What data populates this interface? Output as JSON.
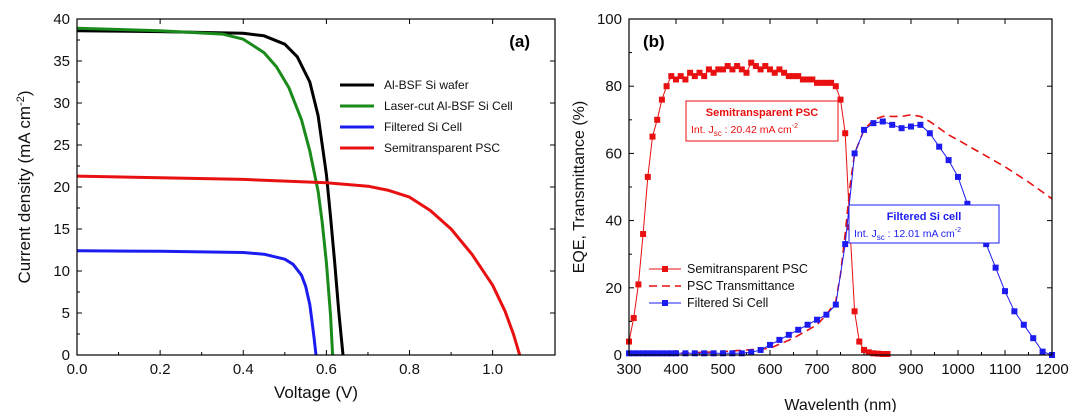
{
  "chart_data": [
    {
      "type": "line",
      "panel_label": "(a)",
      "xlabel": "Voltage (V)",
      "ylabel_main": "Current density (mA cm",
      "ylabel_sup": "-2",
      "ylabel_end": ")",
      "xlim": [
        0.0,
        1.15
      ],
      "ylim": [
        0,
        40
      ],
      "xticks": [
        "0.0",
        "0.2",
        "0.4",
        "0.6",
        "0.8",
        "1.0"
      ],
      "xtick_values": [
        0.0,
        0.2,
        0.4,
        0.6,
        0.8,
        1.0
      ],
      "yticks": [
        "0",
        "5",
        "10",
        "15",
        "20",
        "25",
        "30",
        "35",
        "40"
      ],
      "ytick_values": [
        0,
        5,
        10,
        15,
        20,
        25,
        30,
        35,
        40
      ],
      "legend_position": "right",
      "series": [
        {
          "name": "Al-BSF Si wafer",
          "color": "#000000",
          "x": [
            0.0,
            0.2,
            0.4,
            0.45,
            0.5,
            0.53,
            0.56,
            0.58,
            0.6,
            0.61,
            0.62,
            0.63,
            0.64
          ],
          "y": [
            38.6,
            38.5,
            38.3,
            38.0,
            37.0,
            35.5,
            32.5,
            28.5,
            21.5,
            16.5,
            11.0,
            5.0,
            0.0
          ]
        },
        {
          "name": "Laser-cut Al-BSF Si Cell",
          "color": "#1a8a1a",
          "x": [
            0.0,
            0.2,
            0.35,
            0.4,
            0.45,
            0.48,
            0.51,
            0.54,
            0.56,
            0.58,
            0.59,
            0.6,
            0.61,
            0.615
          ],
          "y": [
            38.9,
            38.6,
            38.2,
            37.6,
            36.0,
            34.3,
            31.8,
            28.0,
            24.3,
            19.5,
            15.8,
            11.0,
            4.8,
            0.0
          ]
        },
        {
          "name": "Filtered Si Cell",
          "color": "#1c1cf0",
          "x": [
            0.0,
            0.2,
            0.4,
            0.45,
            0.5,
            0.52,
            0.54,
            0.55,
            0.56,
            0.565,
            0.57,
            0.575
          ],
          "y": [
            12.4,
            12.35,
            12.2,
            12.0,
            11.4,
            10.8,
            9.5,
            8.2,
            6.0,
            4.2,
            2.2,
            0.0
          ]
        },
        {
          "name": "Semitransparent PSC",
          "color": "#e81010",
          "x": [
            0.0,
            0.2,
            0.4,
            0.6,
            0.7,
            0.75,
            0.8,
            0.85,
            0.9,
            0.95,
            1.0,
            1.03,
            1.05,
            1.065
          ],
          "y": [
            21.3,
            21.1,
            20.9,
            20.5,
            20.1,
            19.6,
            18.8,
            17.2,
            15.0,
            12.0,
            8.3,
            5.2,
            2.5,
            0.0
          ]
        }
      ]
    },
    {
      "type": "scatter",
      "panel_label": "(b)",
      "xlabel": "Wavelenth (nm)",
      "ylabel": "EQE, Transmittance (%)",
      "xlim": [
        300,
        1200
      ],
      "ylim": [
        0,
        100
      ],
      "xticks": [
        "300",
        "400",
        "500",
        "600",
        "700",
        "800",
        "900",
        "1000",
        "1100",
        "1200"
      ],
      "xtick_values": [
        300,
        400,
        500,
        600,
        700,
        800,
        900,
        1000,
        1100,
        1200
      ],
      "yticks": [
        "0",
        "20",
        "40",
        "60",
        "80",
        "100"
      ],
      "ytick_values": [
        0,
        20,
        40,
        60,
        80,
        100
      ],
      "legend_position": "bottom-left",
      "annotations": [
        {
          "title": "Semitransparent PSC",
          "prefix": "Int. J",
          "sub": "sc",
          "value": " : 20.42 mA cm",
          "sup": "-2",
          "color": "#e81010"
        },
        {
          "title": "Filtered Si cell",
          "prefix": "Int. J",
          "sub": "sc",
          "value": " : 12.01 mA cm",
          "sup": "-2",
          "color": "#1c1cf0"
        }
      ],
      "series": [
        {
          "name": "Semitransparent PSC",
          "color": "#e81010",
          "style": "line-square",
          "x": [
            300,
            310,
            320,
            330,
            340,
            350,
            360,
            370,
            380,
            390,
            400,
            410,
            420,
            430,
            440,
            450,
            460,
            470,
            480,
            490,
            500,
            510,
            520,
            530,
            540,
            550,
            560,
            570,
            580,
            590,
            600,
            610,
            620,
            630,
            640,
            650,
            660,
            670,
            680,
            690,
            700,
            710,
            720,
            730,
            740,
            750,
            760,
            770,
            780,
            790,
            800,
            810,
            820,
            830,
            840,
            850
          ],
          "y": [
            4,
            11,
            21,
            36,
            53,
            65,
            70,
            76,
            80,
            83,
            82,
            83,
            82,
            84,
            83,
            84,
            83,
            85,
            84,
            85,
            85,
            86,
            85,
            86,
            85,
            84,
            87,
            86,
            85,
            86,
            85,
            84,
            85,
            84,
            83,
            83,
            83,
            82,
            82,
            82,
            81,
            81,
            81,
            81,
            80,
            76,
            66,
            38,
            13,
            4,
            1.5,
            0.8,
            0.5,
            0.4,
            0.3,
            0.3
          ]
        },
        {
          "name": "PSC Transmittance",
          "color": "#e81010",
          "style": "dashed",
          "x": [
            300,
            400,
            500,
            600,
            650,
            700,
            720,
            740,
            750,
            760,
            770,
            780,
            800,
            820,
            840,
            860,
            880,
            900,
            920,
            940,
            960,
            980,
            1000,
            1050,
            1100,
            1150,
            1200
          ],
          "y": [
            0.3,
            0.5,
            1,
            2,
            5,
            9,
            12,
            16,
            24,
            36,
            50,
            60,
            67,
            70,
            71,
            71,
            71,
            71.5,
            71,
            69.5,
            67.5,
            65.5,
            64,
            60,
            56,
            51.5,
            46.5
          ]
        },
        {
          "name": "Filtered Si Cell",
          "color": "#1c1cf0",
          "style": "line-square",
          "x": [
            300,
            310,
            320,
            330,
            340,
            350,
            360,
            370,
            380,
            390,
            400,
            420,
            440,
            460,
            480,
            500,
            520,
            540,
            560,
            580,
            600,
            620,
            640,
            660,
            680,
            700,
            720,
            740,
            760,
            780,
            800,
            820,
            840,
            860,
            880,
            900,
            920,
            940,
            960,
            980,
            1000,
            1020,
            1040,
            1060,
            1080,
            1100,
            1120,
            1140,
            1160,
            1180,
            1200
          ],
          "y": [
            0.5,
            0.5,
            0.5,
            0.5,
            0.5,
            0.5,
            0.5,
            0.5,
            0.5,
            0.5,
            0.5,
            0.5,
            0.5,
            0.5,
            0.5,
            0.5,
            0.5,
            0.5,
            0.8,
            1.5,
            3,
            4.5,
            6,
            7.5,
            9,
            10.5,
            12,
            15,
            33,
            60,
            67,
            69,
            69.5,
            68.5,
            67.5,
            68,
            68.5,
            66,
            62,
            58,
            53,
            45,
            38,
            33,
            26,
            19,
            13,
            9,
            5,
            1,
            0
          ]
        }
      ]
    }
  ]
}
